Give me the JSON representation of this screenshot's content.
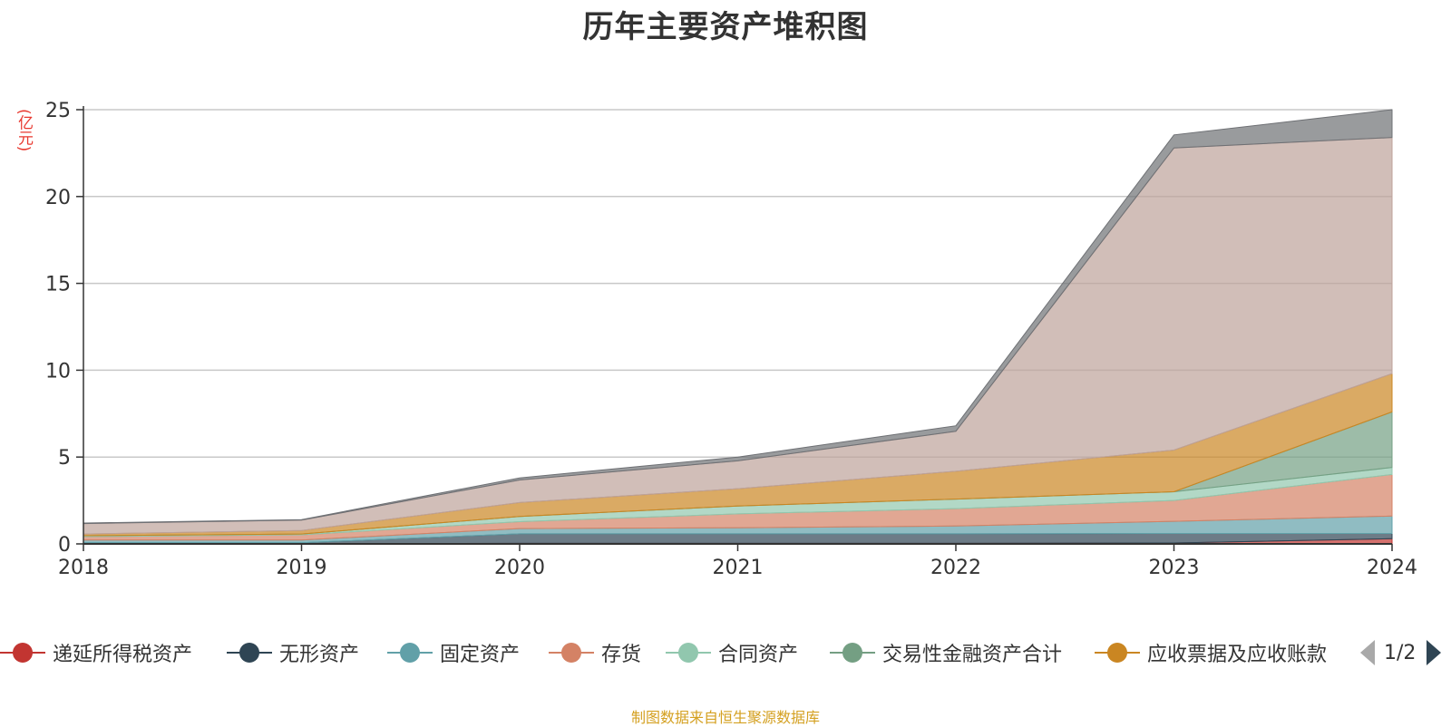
{
  "chart_data": {
    "type": "area",
    "title": "历年主要资产堆积图",
    "ylabel": "(亿元)",
    "ylim": [
      0,
      25
    ],
    "yticks": [
      "0",
      "5",
      "10",
      "15",
      "20",
      "25"
    ],
    "categories": [
      "2018",
      "2019",
      "2020",
      "2021",
      "2022",
      "2023",
      "2024"
    ],
    "stacked": true,
    "grid": true,
    "legend_position": "bottom",
    "series": [
      {
        "name": "递延所得税资产",
        "color": "#c23531",
        "values": [
          0.02,
          0.02,
          0.03,
          0.03,
          0.03,
          0.05,
          0.3
        ]
      },
      {
        "name": "无形资产",
        "color": "#2f4554",
        "values": [
          0.05,
          0.05,
          0.55,
          0.55,
          0.55,
          0.55,
          0.3
        ]
      },
      {
        "name": "固定资产",
        "color": "#61a0a8",
        "values": [
          0.15,
          0.15,
          0.3,
          0.35,
          0.45,
          0.7,
          1.0
        ]
      },
      {
        "name": "存货",
        "color": "#d48265",
        "values": [
          0.2,
          0.3,
          0.4,
          0.8,
          1.0,
          1.2,
          2.4
        ]
      },
      {
        "name": "合同资产",
        "color": "#91c7ae",
        "values": [
          0.05,
          0.05,
          0.3,
          0.45,
          0.55,
          0.5,
          0.4
        ]
      },
      {
        "name": "交易性金融资产合计",
        "color": "#749f83",
        "values": [
          0,
          0,
          0,
          0,
          0,
          0,
          3.2
        ]
      },
      {
        "name": "应收票据及应收账款",
        "color": "#ca8622",
        "values": [
          0.1,
          0.2,
          0.8,
          1.0,
          1.6,
          2.4,
          2.2
        ]
      },
      {
        "name": "",
        "color": "#bda29a",
        "values": [
          0.6,
          0.6,
          1.3,
          1.6,
          2.3,
          17.4,
          13.6
        ]
      },
      {
        "name": "",
        "color": "#6e7074",
        "values": [
          0.03,
          0.03,
          0.12,
          0.22,
          0.32,
          0.75,
          1.6
        ]
      }
    ]
  },
  "legend": {
    "items": [
      {
        "label": "递延所得税资产",
        "color": "#c23531"
      },
      {
        "label": "无形资产",
        "color": "#2f4554"
      },
      {
        "label": "固定资产",
        "color": "#61a0a8"
      },
      {
        "label": "存货",
        "color": "#d48265"
      },
      {
        "label": "合同资产",
        "color": "#91c7ae"
      },
      {
        "label": "交易性金融资产合计",
        "color": "#749f83"
      },
      {
        "label": "应收票据及应收账款",
        "color": "#ca8622"
      }
    ],
    "page_label": "1/2"
  },
  "source": "制图数据来自恒生聚源数据库"
}
